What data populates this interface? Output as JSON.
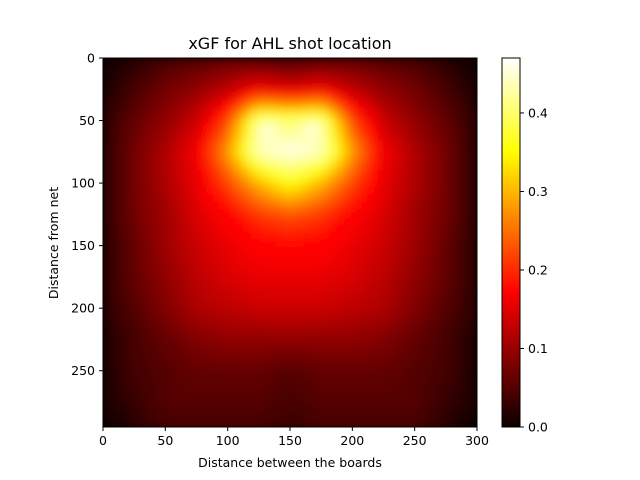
{
  "chart_data": {
    "type": "heatmap",
    "title": "xGF for AHL shot location",
    "xlabel": "Distance between the boards",
    "ylabel": "Distance from net",
    "xlim": [
      0,
      300
    ],
    "ylim": [
      295,
      0
    ],
    "y_inverted": true,
    "x_ticks": [
      0,
      50,
      100,
      150,
      200,
      250,
      300
    ],
    "y_ticks": [
      0,
      50,
      100,
      150,
      200,
      250
    ],
    "colormap": "hot",
    "colorbar": {
      "vmin": 0.0,
      "vmax": 0.47,
      "ticks": [
        0.0,
        0.1,
        0.2,
        0.3,
        0.4
      ],
      "tick_labels": [
        "0.0",
        "0.1",
        "0.2",
        "0.3",
        "0.4"
      ]
    },
    "grid": false,
    "hotspots": [
      {
        "x": 132,
        "y": 58,
        "value": 0.47
      },
      {
        "x": 168,
        "y": 58,
        "value": 0.47
      },
      {
        "x": 150,
        "y": 80,
        "value": 0.44
      }
    ],
    "approx_grid": {
      "x": [
        0,
        25,
        50,
        75,
        100,
        125,
        150,
        175,
        200,
        225,
        250,
        275,
        300
      ],
      "y": [
        0,
        25,
        50,
        75,
        100,
        125,
        150,
        175,
        200,
        225,
        250,
        275,
        295
      ],
      "values": [
        [
          0.0,
          0.02,
          0.04,
          0.05,
          0.06,
          0.05,
          0.04,
          0.05,
          0.06,
          0.05,
          0.04,
          0.02,
          0.0
        ],
        [
          0.01,
          0.04,
          0.07,
          0.09,
          0.12,
          0.16,
          0.14,
          0.16,
          0.12,
          0.09,
          0.07,
          0.04,
          0.01
        ],
        [
          0.02,
          0.06,
          0.09,
          0.13,
          0.22,
          0.42,
          0.4,
          0.42,
          0.22,
          0.13,
          0.09,
          0.06,
          0.02
        ],
        [
          0.02,
          0.07,
          0.11,
          0.16,
          0.28,
          0.44,
          0.46,
          0.44,
          0.28,
          0.16,
          0.11,
          0.07,
          0.02
        ],
        [
          0.02,
          0.07,
          0.11,
          0.15,
          0.22,
          0.3,
          0.36,
          0.3,
          0.22,
          0.15,
          0.11,
          0.07,
          0.02
        ],
        [
          0.02,
          0.07,
          0.1,
          0.14,
          0.17,
          0.21,
          0.23,
          0.21,
          0.17,
          0.14,
          0.1,
          0.07,
          0.02
        ],
        [
          0.02,
          0.06,
          0.1,
          0.13,
          0.15,
          0.17,
          0.17,
          0.17,
          0.15,
          0.13,
          0.1,
          0.06,
          0.02
        ],
        [
          0.02,
          0.06,
          0.09,
          0.12,
          0.14,
          0.15,
          0.15,
          0.15,
          0.14,
          0.12,
          0.09,
          0.06,
          0.02
        ],
        [
          0.02,
          0.05,
          0.08,
          0.11,
          0.12,
          0.13,
          0.13,
          0.13,
          0.12,
          0.11,
          0.08,
          0.05,
          0.02
        ],
        [
          0.01,
          0.04,
          0.06,
          0.08,
          0.09,
          0.09,
          0.09,
          0.09,
          0.09,
          0.08,
          0.06,
          0.04,
          0.01
        ],
        [
          0.01,
          0.04,
          0.05,
          0.06,
          0.06,
          0.06,
          0.05,
          0.06,
          0.06,
          0.06,
          0.05,
          0.04,
          0.01
        ],
        [
          0.01,
          0.03,
          0.05,
          0.05,
          0.05,
          0.05,
          0.04,
          0.05,
          0.05,
          0.05,
          0.05,
          0.03,
          0.01
        ],
        [
          0.0,
          0.02,
          0.04,
          0.04,
          0.04,
          0.04,
          0.03,
          0.04,
          0.04,
          0.04,
          0.04,
          0.02,
          0.0
        ]
      ]
    }
  }
}
